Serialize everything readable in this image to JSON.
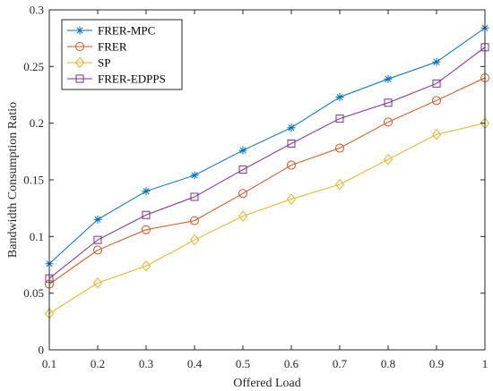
{
  "chart_data": {
    "type": "line",
    "title": "",
    "xlabel": "Offered Load",
    "ylabel": "Bandwidth Consumption Ratio",
    "x": [
      0.1,
      0.2,
      0.3,
      0.4,
      0.5,
      0.6,
      0.7,
      0.8,
      0.9,
      1.0
    ],
    "xlim": [
      0.1,
      1.0
    ],
    "ylim": [
      0,
      0.3
    ],
    "xticks": [
      "0.1",
      "0.2",
      "0.3",
      "0.4",
      "0.5",
      "0.6",
      "0.7",
      "0.8",
      "0.9",
      "1"
    ],
    "yticks": [
      "0",
      "0.05",
      "0.1",
      "0.15",
      "0.2",
      "0.25",
      "0.3"
    ],
    "ytick_values": [
      0,
      0.05,
      0.1,
      0.15,
      0.2,
      0.25,
      0.3
    ],
    "grid": false,
    "legend_position": "top-left",
    "series": [
      {
        "name": "FRER-MPC",
        "color": "#0072BD",
        "marker": "asterisk",
        "values": [
          0.076,
          0.115,
          0.14,
          0.154,
          0.176,
          0.196,
          0.223,
          0.239,
          0.254,
          0.284
        ]
      },
      {
        "name": "FRER",
        "color": "#D95319",
        "marker": "circle",
        "values": [
          0.058,
          0.088,
          0.106,
          0.114,
          0.138,
          0.163,
          0.178,
          0.201,
          0.22,
          0.24
        ]
      },
      {
        "name": "SP",
        "color": "#EDB120",
        "marker": "diamond",
        "values": [
          0.032,
          0.059,
          0.074,
          0.097,
          0.118,
          0.133,
          0.146,
          0.168,
          0.19,
          0.2
        ]
      },
      {
        "name": "FRER-EDPPS",
        "color": "#7E2F8E",
        "marker": "square",
        "values": [
          0.063,
          0.097,
          0.119,
          0.135,
          0.159,
          0.182,
          0.204,
          0.218,
          0.235,
          0.267
        ]
      }
    ]
  }
}
